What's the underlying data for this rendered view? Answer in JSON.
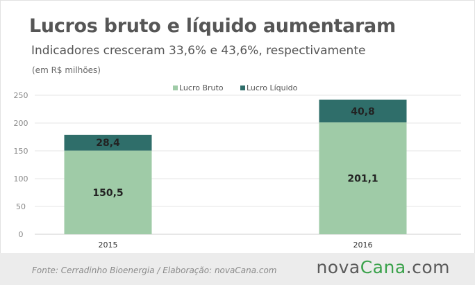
{
  "header": {
    "title": "Lucros bruto e líquido aumentaram",
    "subtitle": "Indicadores cresceram 33,6% e 43,6%, respectivamente",
    "unit": "(em R$ milhões)"
  },
  "chart_data": {
    "type": "bar",
    "stacked": true,
    "categories": [
      "2015",
      "2016"
    ],
    "series": [
      {
        "name": "Lucro Bruto",
        "values": [
          150.5,
          201.1
        ],
        "labels": [
          "150,5",
          "201,1"
        ],
        "color": "#9fcba7"
      },
      {
        "name": "Lucro Líquido",
        "values": [
          28.4,
          40.8
        ],
        "labels": [
          "28,4",
          "40,8"
        ],
        "color": "#2f6e6a"
      }
    ],
    "ylim": [
      0,
      250
    ],
    "yticks": [
      0,
      50,
      100,
      150,
      200,
      250
    ],
    "grid": true,
    "legend": "top-center"
  },
  "footer": {
    "source": "Fonte: Cerradinho Bioenergia / Elaboração: novaCana.com",
    "logo_parts": [
      "nova",
      "Cana",
      ".com"
    ]
  }
}
